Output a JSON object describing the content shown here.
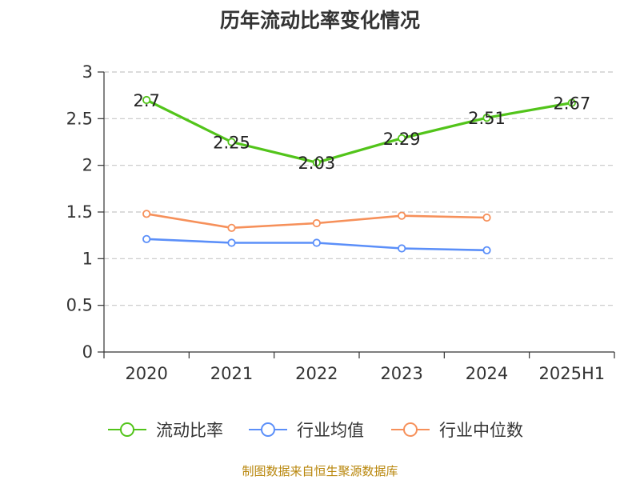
{
  "chart_data": {
    "type": "line",
    "title": "历年流动比率变化情况",
    "categories": [
      "2020",
      "2021",
      "2022",
      "2023",
      "2024",
      "2025H1"
    ],
    "ylim": [
      0,
      3
    ],
    "yticks": [
      "0",
      "0.5",
      "1",
      "1.5",
      "2",
      "2.5",
      "3"
    ],
    "grid": true,
    "legend_position": "bottom",
    "series": [
      {
        "name": "流动比率",
        "color": "#52c41a",
        "values": [
          2.7,
          2.25,
          2.03,
          2.29,
          2.51,
          2.67
        ],
        "labels": [
          "2.7",
          "2.25",
          "2.03",
          "2.29",
          "2.51",
          "2.67"
        ]
      },
      {
        "name": "行业均值",
        "color": "#5b8ff9",
        "values": [
          1.21,
          1.17,
          1.17,
          1.11,
          1.09,
          null
        ]
      },
      {
        "name": "行业中位数",
        "color": "#f6905a",
        "values": [
          1.48,
          1.33,
          1.38,
          1.46,
          1.44,
          null
        ]
      }
    ],
    "source": "制图数据来自恒生聚源数据库"
  }
}
